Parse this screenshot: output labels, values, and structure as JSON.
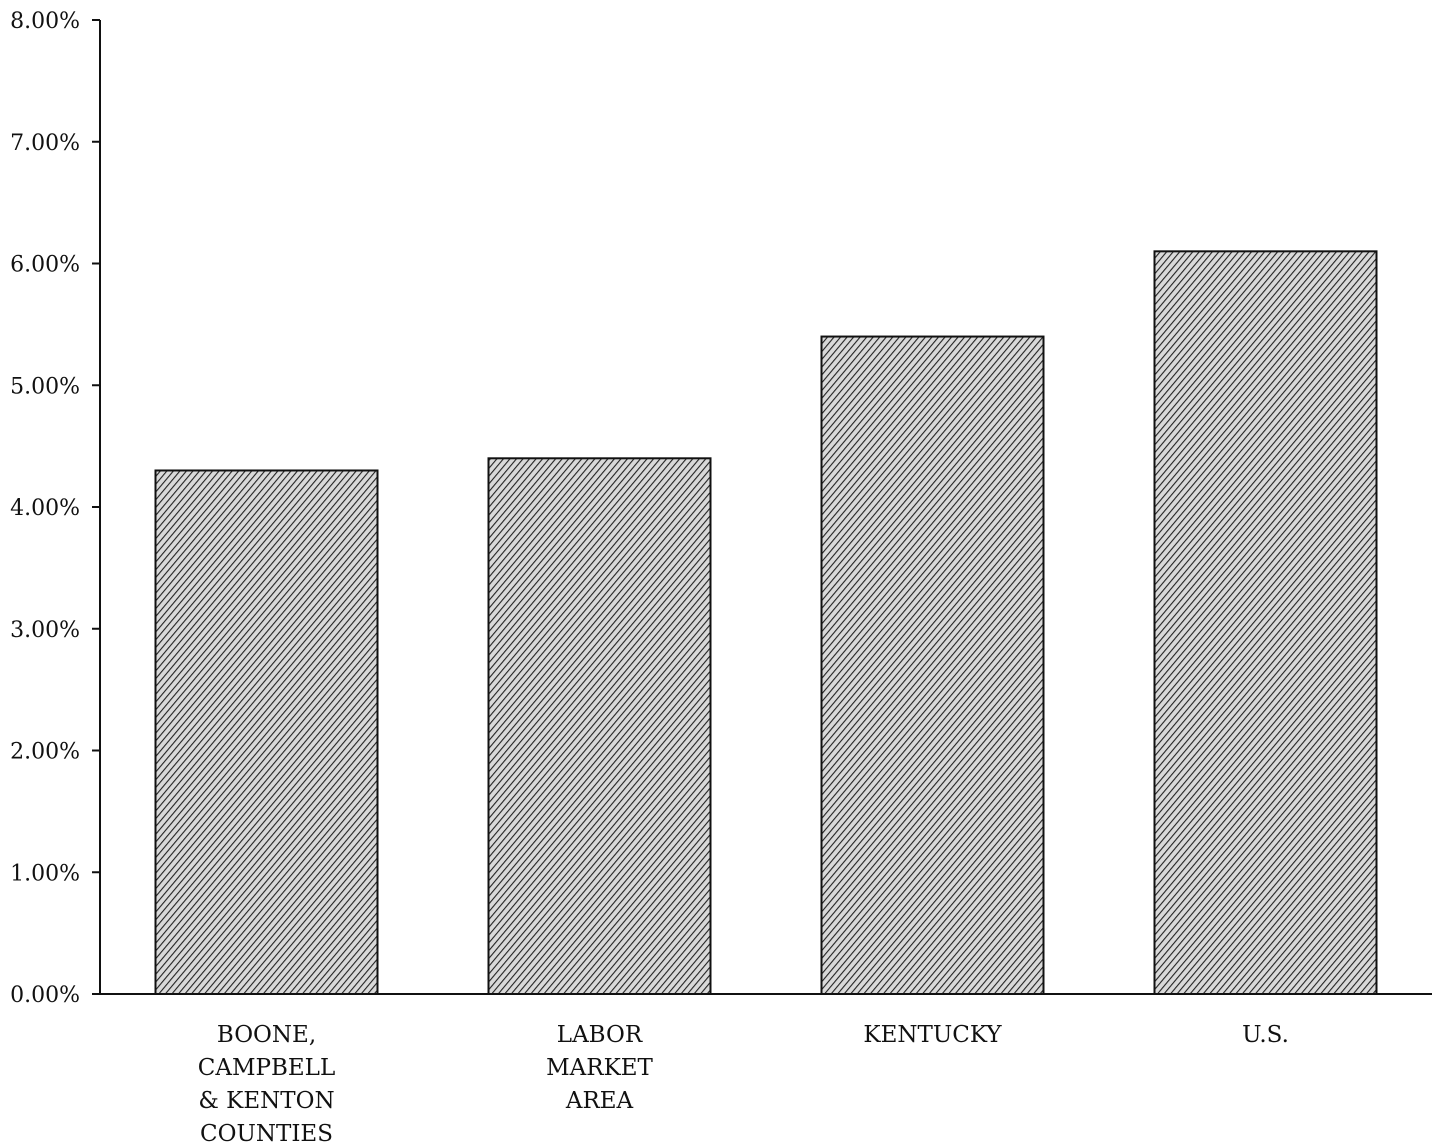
{
  "chart_data": {
    "type": "bar",
    "title": "",
    "xlabel": "",
    "ylabel": "",
    "categories": [
      [
        "BOONE,",
        "CAMPBELL",
        "& KENTON",
        "COUNTIES"
      ],
      [
        "LABOR",
        "MARKET",
        "AREA"
      ],
      [
        "KENTUCKY"
      ],
      [
        "U.S."
      ]
    ],
    "values": [
      4.3,
      4.4,
      5.4,
      6.1
    ],
    "ylim": [
      0,
      8
    ],
    "yticks": [
      {
        "value": 0,
        "label": "0.00%"
      },
      {
        "value": 1,
        "label": "1.00%"
      },
      {
        "value": 2,
        "label": "2.00%"
      },
      {
        "value": 3,
        "label": "3.00%"
      },
      {
        "value": 4,
        "label": "4.00%"
      },
      {
        "value": 5,
        "label": "5.00%"
      },
      {
        "value": 6,
        "label": "6.00%"
      },
      {
        "value": 7,
        "label": "7.00%"
      },
      {
        "value": 8,
        "label": "8.00%"
      }
    ],
    "grid": false,
    "bar_fill": "#8a8a8a",
    "bar_stroke": "#111111",
    "hatch": "diagonal"
  }
}
